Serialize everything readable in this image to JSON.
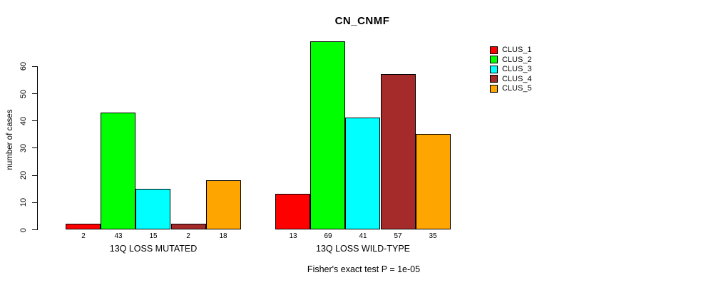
{
  "chart_data": {
    "type": "bar",
    "title": "CN_CNMF",
    "ylabel": "number of cases",
    "subtitle": "Fisher's exact test P = 1e-05",
    "ylim": [
      0,
      60
    ],
    "yticks": [
      0,
      10,
      20,
      30,
      40,
      50,
      60
    ],
    "grid": false,
    "legend_position": "right",
    "bar_value_labels_shown": true,
    "categories": [
      "13Q LOSS MUTATED",
      "13Q LOSS WILD-TYPE"
    ],
    "groups": [
      {
        "label": "13Q LOSS MUTATED",
        "values": [
          2,
          43,
          15,
          2,
          18
        ]
      },
      {
        "label": "13Q LOSS WILD-TYPE",
        "values": [
          13,
          69,
          41,
          57,
          35
        ]
      }
    ],
    "series": [
      {
        "name": "CLUS_1",
        "color": "#FF0000"
      },
      {
        "name": "CLUS_2",
        "color": "#00FF00"
      },
      {
        "name": "CLUS_3",
        "color": "#00FFFF"
      },
      {
        "name": "CLUS_4",
        "color": "#A52A2A"
      },
      {
        "name": "CLUS_5",
        "color": "#FFA500"
      }
    ],
    "colors": {
      "axis": "#000000",
      "text": "#000000",
      "background": "#FFFFFF"
    }
  }
}
